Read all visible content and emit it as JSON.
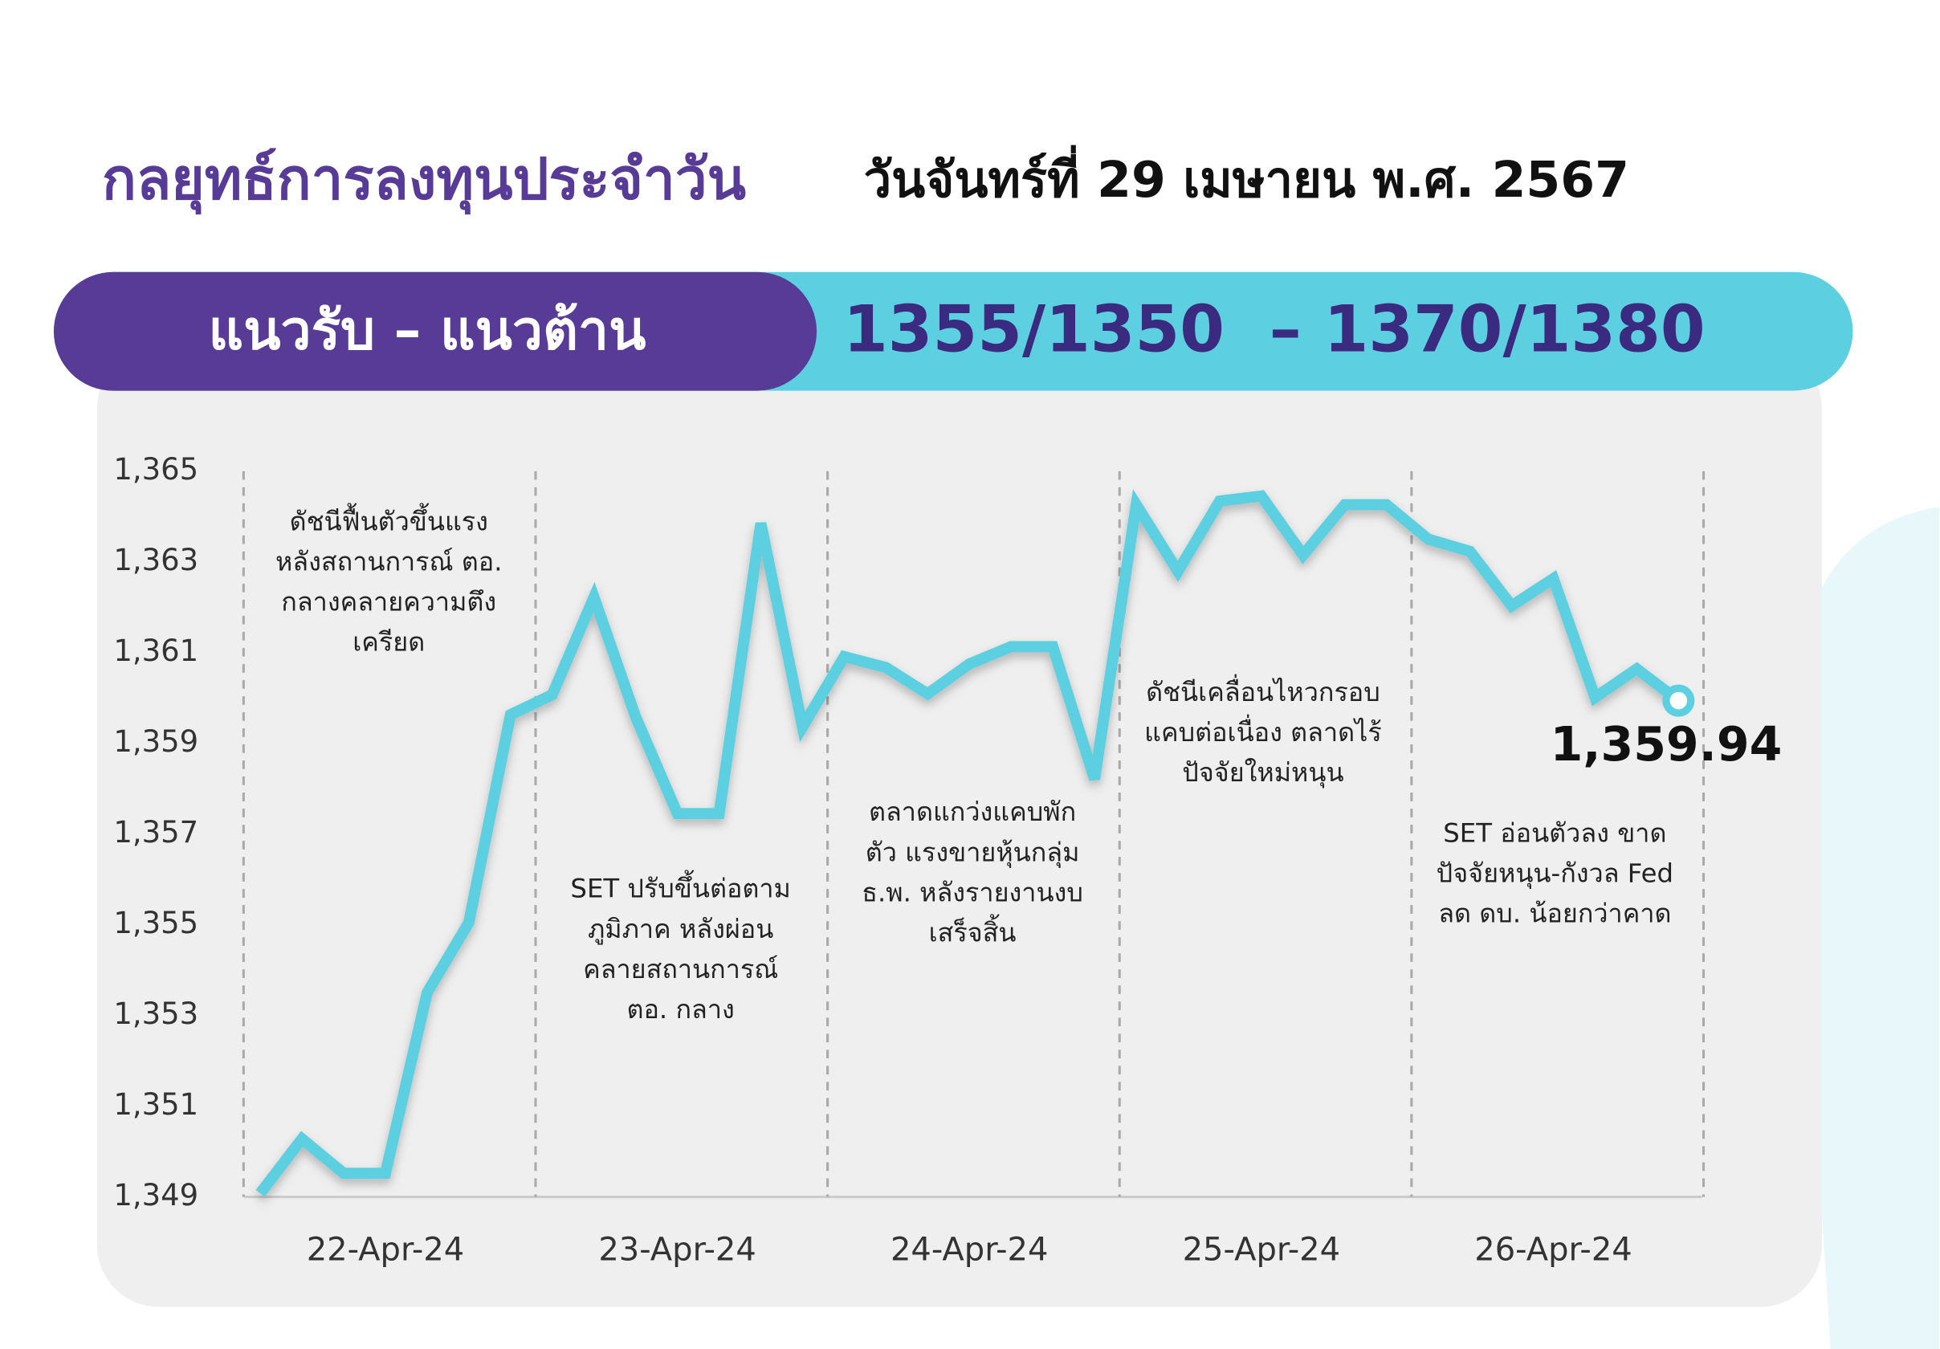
{
  "header": {
    "title": "กลยุทธ์การลงทุนประจำวัน",
    "date": "วันจันทร์ที่ 29 เมษายน พ.ศ. 2567",
    "banner_label": "แนวรับ – แนวต้าน",
    "banner_levels": "1355/1350  – 1370/1380"
  },
  "chart_data": {
    "type": "line",
    "categories": [
      null,
      null,
      null,
      "22-Apr-24",
      null,
      null,
      null,
      null,
      null,
      null,
      "23-Apr-24",
      null,
      null,
      null,
      null,
      null,
      null,
      "24-Apr-24",
      null,
      null,
      null,
      null,
      null,
      null,
      "25-Apr-24",
      null,
      null,
      null,
      null,
      null,
      null,
      "26-Apr-24",
      null,
      null,
      null
    ],
    "series": [
      {
        "color": "#5ccfe0",
        "values": [
          1349.08,
          1350.28,
          1349.52,
          1349.52,
          1353.5,
          1355.05,
          1359.63,
          1360.07,
          1362.22,
          1359.58,
          1357.45,
          1357.45,
          1363.85,
          1359.36,
          1360.91,
          1360.67,
          1360.09,
          1360.75,
          1361.13,
          1361.13,
          1358.21,
          1364.26,
          1362.79,
          1364.34,
          1364.45,
          1363.15,
          1364.26,
          1364.26,
          1363.5,
          1363.23,
          1362.03,
          1362.63,
          1360.01,
          1360.64,
          1359.94
        ],
        "value_labels": [
          null,
          null,
          null,
          null,
          null,
          null,
          null,
          null,
          null,
          null,
          null,
          null,
          null,
          null,
          null,
          null,
          null,
          null,
          null,
          null,
          null,
          null,
          null,
          null,
          null,
          null,
          null,
          null,
          null,
          null,
          null,
          null,
          null,
          null,
          "1,359.94"
        ]
      }
    ],
    "ylim": [
      1349,
      1365
    ],
    "yticks": [
      {
        "value": 1349,
        "label": "1,349"
      },
      {
        "value": 1351,
        "label": "1,351"
      },
      {
        "value": 1353,
        "label": "1,353"
      },
      {
        "value": 1355,
        "label": "1,355"
      },
      {
        "value": 1357,
        "label": "1,357"
      },
      {
        "value": 1359,
        "label": "1,359"
      },
      {
        "value": 1361,
        "label": "1,361"
      },
      {
        "value": 1363,
        "label": "1,363"
      },
      {
        "value": 1365,
        "label": "1,365"
      }
    ],
    "annotations": [
      [
        "ดัชนีฟื้นตัวขึ้นแรง",
        "หลังสถานการณ์ ตอ.",
        "กลางคลายความตึง",
        "เครียด"
      ],
      [
        "SET ปรับขึ้นต่อตาม",
        "ภูมิภาค หลังผ่อน",
        "คลายสถานการณ์",
        "ตอ. กลาง"
      ],
      [
        "ตลาดแกว่งแคบพัก",
        "ตัว แรงขายหุ้นกลุ่ม",
        "ธ.พ. หลังรายงานงบ",
        "เสร็จสิ้น"
      ],
      [
        "ดัชนีเคลื่อนไหวกรอบ",
        "แคบต่อเนื่อง ตลาดไร้",
        "ปัจจัยใหม่หนุน"
      ],
      [
        "SET อ่อนตัวลง ขาด",
        "ปัจจัยหนุน-กังวล Fed",
        "ลด ดบ. น้อยกว่าคาด"
      ]
    ]
  }
}
